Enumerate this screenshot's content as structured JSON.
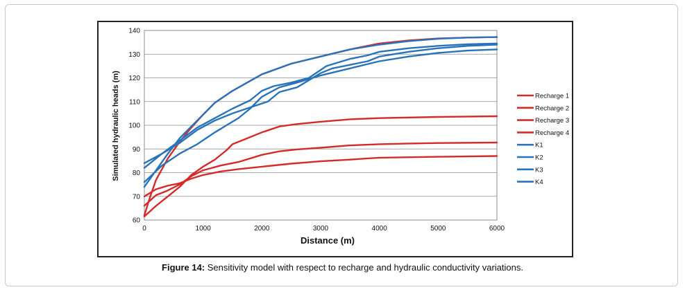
{
  "caption": {
    "label": "Figure 14:",
    "text": " Sensitivity model with respect to recharge and hydraulic conductivity variations."
  },
  "chart_data": {
    "type": "line",
    "title": "",
    "xlabel": "Distance (m)",
    "ylabel": "Simulated hydraulic heads (m)",
    "xlim": [
      0,
      6000
    ],
    "ylim": [
      60,
      140
    ],
    "xticks": [
      0,
      1000,
      2000,
      3000,
      4000,
      5000,
      6000
    ],
    "yticks": [
      60,
      70,
      80,
      90,
      100,
      110,
      120,
      130,
      140
    ],
    "grid": "horizontal",
    "legend_position": "right",
    "colors": {
      "recharge": "#d42a2a",
      "k": "#2a73b8"
    },
    "series": [
      {
        "name": "Recharge 1",
        "color": "#d42a2a",
        "x": [
          0,
          100,
          200,
          400,
          600,
          800,
          1000,
          1200,
          1500,
          2000,
          2500,
          3000,
          3500,
          4000,
          4500,
          5000,
          5500,
          6000
        ],
        "y": [
          62,
          70,
          77,
          86,
          93,
          99,
          104.5,
          109.5,
          114.5,
          121.5,
          126,
          129,
          132,
          134.5,
          135.8,
          136.6,
          137,
          137.2
        ]
      },
      {
        "name": "Recharge 2",
        "color": "#d42a2a",
        "x": [
          0,
          200,
          400,
          600,
          800,
          1000,
          1200,
          1400,
          1500,
          1700,
          2000,
          2300,
          2600,
          3000,
          3500,
          4000,
          5000,
          6000
        ],
        "y": [
          61.5,
          66,
          70,
          74,
          79,
          82.5,
          85.5,
          89.5,
          92,
          94,
          97,
          99.5,
          100.5,
          101.5,
          102.5,
          103,
          103.5,
          103.8
        ]
      },
      {
        "name": "Recharge 3",
        "color": "#d42a2a",
        "x": [
          0,
          200,
          400,
          600,
          800,
          1000,
          1300,
          1600,
          2000,
          2300,
          2600,
          3000,
          3500,
          4000,
          4500,
          5000,
          6000
        ],
        "y": [
          66,
          70.5,
          72.5,
          75,
          78.5,
          81,
          83,
          84.5,
          87.5,
          89,
          89.8,
          90.5,
          91.5,
          92,
          92.3,
          92.5,
          92.7
        ]
      },
      {
        "name": "Recharge 4",
        "color": "#d42a2a",
        "x": [
          0,
          200,
          400,
          600,
          800,
          1000,
          1300,
          1600,
          2000,
          2500,
          3000,
          3500,
          3800,
          4000,
          5000,
          6000
        ],
        "y": [
          70,
          73,
          74.5,
          75.5,
          77.5,
          79,
          80.5,
          81.5,
          82.5,
          83.8,
          84.8,
          85.5,
          86,
          86.3,
          86.7,
          87
        ]
      },
      {
        "name": "K1",
        "color": "#2a73b8",
        "x": [
          0,
          200,
          400,
          600,
          800,
          1000,
          1200,
          1500,
          2000,
          2500,
          3000,
          3500,
          4000,
          4500,
          5000,
          5500,
          6000
        ],
        "y": [
          74,
          81,
          88,
          94.5,
          99.5,
          104.5,
          109.5,
          114.5,
          121.5,
          126,
          129,
          132,
          134,
          135.5,
          136.5,
          137,
          137.2
        ]
      },
      {
        "name": "K2",
        "color": "#2a73b8",
        "x": [
          0,
          300,
          600,
          900,
          1200,
          1400,
          1600,
          1800,
          2000,
          2300,
          2600,
          3000,
          3500,
          4000,
          4500,
          5000,
          5500,
          6000
        ],
        "y": [
          76,
          83,
          88,
          92,
          97,
          100,
          103,
          107,
          112,
          116,
          118,
          121,
          124,
          127,
          129,
          130.5,
          131.5,
          132
        ]
      },
      {
        "name": "K3",
        "color": "#2a73b8",
        "x": [
          0,
          300,
          600,
          900,
          1200,
          1500,
          1800,
          2100,
          2300,
          2600,
          3000,
          3200,
          3500,
          3800,
          4000,
          4500,
          5000,
          5500,
          6000
        ],
        "y": [
          84,
          88,
          92.5,
          98,
          102,
          105,
          107.5,
          110,
          114,
          116,
          122,
          124,
          125.5,
          127,
          129,
          131,
          132.5,
          133.5,
          134
        ]
      },
      {
        "name": "K4",
        "color": "#2a73b8",
        "x": [
          0,
          300,
          600,
          900,
          1200,
          1500,
          1800,
          2000,
          2200,
          2500,
          2800,
          3100,
          3500,
          3800,
          4000,
          4500,
          5000,
          5500,
          6000
        ],
        "y": [
          82,
          88,
          93.5,
          99,
          103,
          107,
          110.5,
          114.5,
          116.5,
          118,
          120,
          125,
          128,
          129.5,
          131,
          132.5,
          133.5,
          134.2,
          134.5
        ]
      }
    ]
  }
}
